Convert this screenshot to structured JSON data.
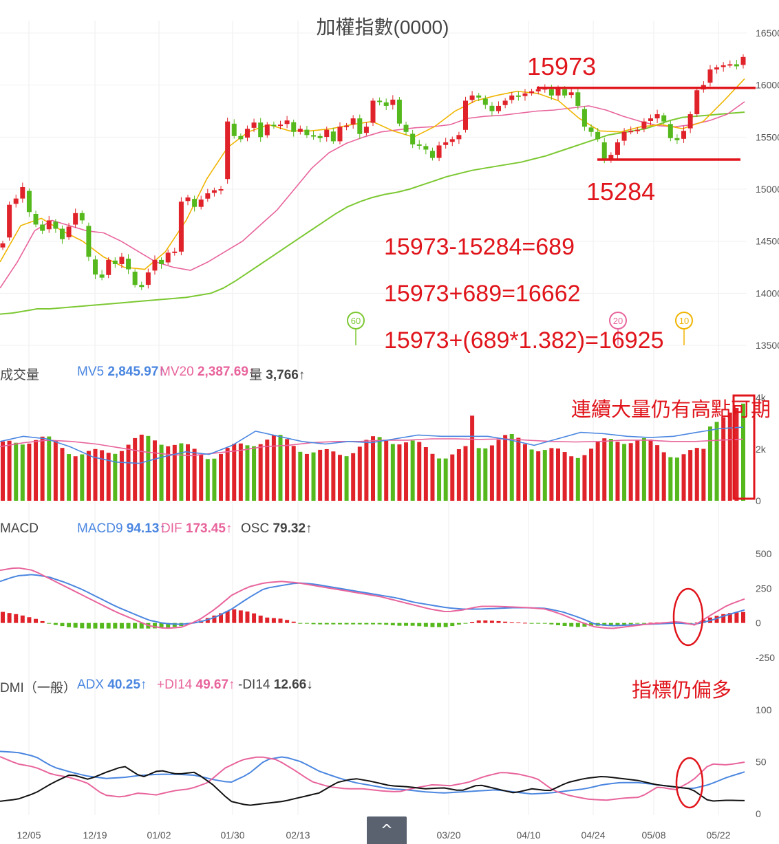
{
  "title": "加權指數(0000)",
  "x_ticks": [
    "12/05",
    "12/19",
    "01/02",
    "01/30",
    "02/13",
    "03/20",
    "04/10",
    "04/24",
    "05/08",
    "05/22"
  ],
  "price_panel": {
    "y_ticks": [
      "16500",
      "16000",
      "15500",
      "15000",
      "14500",
      "14000",
      "13500"
    ],
    "ma_badges": [
      {
        "label": "60",
        "color": "#7cc832"
      },
      {
        "label": "20",
        "color": "#e8649c"
      },
      {
        "label": "10",
        "color": "#f0b400"
      }
    ],
    "annotations": {
      "high": "15973",
      "low": "15284",
      "calc1": "15973-15284=689",
      "calc2": "15973+689=16662",
      "calc3": "15973+(689*1.382)=16925"
    }
  },
  "volume_panel": {
    "label": "成交量",
    "mv5_label": "MV5",
    "mv5_value": "2,845.97↑",
    "mv20_label": "MV20",
    "mv20_value": "2,387.69↑",
    "vol_label": "量",
    "vol_value": "3,766↑",
    "y_ticks": [
      "4k",
      "2k",
      "0"
    ],
    "note": "連續大量仍有高點可期"
  },
  "macd_panel": {
    "label": "MACD",
    "macd9_label": "MACD9",
    "macd9_value": "94.13↑",
    "dif_label": "DIF",
    "dif_value": "173.45↑",
    "osc_label": "OSC",
    "osc_value": "79.32↑",
    "y_ticks": [
      "500",
      "250",
      "0",
      "-250"
    ]
  },
  "dmi_panel": {
    "label": "DMI（一般）",
    "adx_label": "ADX",
    "adx_value": "40.25↑",
    "pdi_label": "+DI14",
    "pdi_value": "49.67↑",
    "mdi_label": "-DI14",
    "mdi_value": "12.66↓",
    "y_ticks": [
      "100",
      "50",
      "0"
    ],
    "note": "指標仍偏多"
  },
  "colors": {
    "up": "#e0232a",
    "down": "#55b81c",
    "ma5": "#4a86e0",
    "ma10": "#f0b400",
    "ma20": "#e8649c",
    "ma60": "#7cc832",
    "black": "#111111",
    "annotation": "#e0151c"
  },
  "scroll_top_glyph": "^",
  "chart_data": [
    {
      "type": "candlestick",
      "title": "加權指數(0000)",
      "ylim": [
        13500,
        16500
      ],
      "close": [
        14480,
        14850,
        14910,
        15020,
        14780,
        14660,
        14600,
        14700,
        14620,
        14520,
        14640,
        14770,
        14700,
        14350,
        14180,
        14150,
        14320,
        14280,
        14350,
        14230,
        14080,
        14060,
        14200,
        14320,
        14280,
        14390,
        14400,
        14880,
        14920,
        14830,
        14900,
        14960,
        14990,
        15000,
        15650,
        15510,
        15480,
        15580,
        15640,
        15500,
        15620,
        15610,
        15620,
        15660,
        15550,
        15580,
        15520,
        15510,
        15490,
        15570,
        15460,
        15600,
        15610,
        15680,
        15530,
        15600,
        15850,
        15840,
        15800,
        15860,
        15630,
        15550,
        15430,
        15420,
        15380,
        15300,
        15420,
        15450,
        15480,
        15520,
        15850,
        15900,
        15880,
        15810,
        15750,
        15800,
        15850,
        15900,
        15890,
        15920,
        15940,
        15960,
        15970,
        15900,
        15970,
        15900,
        15930,
        15800,
        15600,
        15550,
        15480,
        15280,
        15330,
        15450,
        15550,
        15560,
        15570,
        15650,
        15680,
        15720,
        15650,
        15490,
        15470,
        15560,
        15720,
        15950,
        16000,
        16150,
        16170,
        16190,
        16200,
        16180,
        16270
      ],
      "ma60": [
        13800,
        13810,
        13830,
        13850,
        13850,
        13860,
        13870,
        13880,
        13890,
        13900,
        13910,
        13920,
        13930,
        13940,
        13950,
        13960,
        13980,
        14000,
        14050,
        14120,
        14200,
        14280,
        14360,
        14440,
        14520,
        14600,
        14680,
        14760,
        14830,
        14880,
        14920,
        14950,
        14970,
        15000,
        15040,
        15080,
        15120,
        15150,
        15180,
        15200,
        15220,
        15240,
        15260,
        15290,
        15320,
        15360,
        15400,
        15440,
        15480,
        15520,
        15540,
        15560,
        15580,
        15620,
        15660,
        15690,
        15700,
        15710,
        15720,
        15730,
        15740
      ],
      "ma20_pts": [
        14050,
        14300,
        14600,
        14700,
        14650,
        14600,
        14580,
        14500,
        14400,
        14300,
        14250,
        14220,
        14300,
        14400,
        14500,
        14650,
        14800,
        15000,
        15200,
        15350,
        15440,
        15500,
        15550,
        15570,
        15590,
        15600,
        15620,
        15680,
        15700,
        15710,
        15730,
        15750,
        15760,
        15780,
        15800,
        15760,
        15700,
        15650,
        15610,
        15600,
        15620,
        15660,
        15720,
        15840
      ],
      "ma10_pts": [
        14300,
        14650,
        14720,
        14600,
        14500,
        14350,
        14250,
        14230,
        14400,
        14700,
        15100,
        15400,
        15550,
        15620,
        15560,
        15560,
        15580,
        15620,
        15650,
        15560,
        15500,
        15600,
        15750,
        15850,
        15900,
        15940,
        15920,
        15850,
        15680,
        15560,
        15550,
        15600,
        15620,
        15580,
        15650,
        15850,
        16060
      ]
    },
    {
      "type": "bar",
      "title": "成交量",
      "ylim": [
        0,
        4000
      ],
      "series": [
        {
          "name": "MV5",
          "values": [
            2845.97
          ]
        },
        {
          "name": "MV20",
          "values": [
            2387.69
          ]
        },
        {
          "name": "量",
          "values": [
            3766
          ]
        }
      ]
    },
    {
      "type": "line",
      "title": "MACD",
      "ylim": [
        -250,
        500
      ],
      "series": [
        {
          "name": "MACD9",
          "values": [
            300,
            340,
            350,
            330,
            290,
            240,
            180,
            120,
            70,
            20,
            -5,
            -10,
            5,
            40,
            100,
            180,
            250,
            270,
            290,
            280,
            260,
            240,
            220,
            200,
            180,
            150,
            130,
            110,
            100,
            100,
            105,
            110,
            110,
            105,
            80,
            40,
            -10,
            -20,
            -15,
            -10,
            -5,
            0,
            -10,
            20,
            60,
            94.13
          ]
        },
        {
          "name": "DIF",
          "values": [
            380,
            400,
            380,
            320,
            260,
            200,
            140,
            80,
            30,
            -20,
            -40,
            -30,
            20,
            100,
            200,
            260,
            290,
            300,
            290,
            270,
            250,
            230,
            210,
            190,
            160,
            130,
            100,
            80,
            95,
            120,
            120,
            115,
            110,
            100,
            60,
            10,
            -30,
            -40,
            -25,
            -10,
            0,
            10,
            -15,
            60,
            130,
            173.45
          ]
        },
        {
          "name": "OSC",
          "values": [
            79.32
          ]
        }
      ]
    },
    {
      "type": "line",
      "title": "DMI（一般）",
      "ylim": [
        0,
        100
      ],
      "series": [
        {
          "name": "ADX",
          "values": [
            60,
            59,
            55,
            45,
            40,
            36,
            34,
            35,
            37,
            38,
            38,
            37,
            33,
            30,
            38,
            52,
            55,
            50,
            41,
            35,
            30,
            27,
            24,
            23,
            21,
            20,
            21,
            22,
            23,
            21,
            19,
            20,
            22,
            24,
            28,
            30,
            30,
            28,
            26,
            24,
            28,
            35,
            40.25
          ]
        },
        {
          "name": "+DI14",
          "values": [
            55,
            48,
            45,
            38,
            35,
            30,
            18,
            16,
            20,
            18,
            22,
            24,
            30,
            44,
            52,
            55,
            52,
            42,
            31,
            26,
            24,
            24,
            22,
            21,
            25,
            28,
            27,
            30,
            36,
            40,
            38,
            34,
            22,
            17,
            14,
            13,
            15,
            16,
            26,
            23,
            32,
            48,
            47,
            49.67
          ]
        },
        {
          "name": "-DI14",
          "values": [
            12,
            14,
            20,
            30,
            38,
            33,
            40,
            46,
            35,
            42,
            38,
            40,
            28,
            12,
            8,
            10,
            12,
            16,
            20,
            30,
            34,
            31,
            27,
            26,
            24,
            25,
            22,
            28,
            24,
            20,
            24,
            22,
            30,
            34,
            36,
            34,
            32,
            28,
            26,
            24,
            12,
            13,
            12.66
          ]
        }
      ]
    }
  ]
}
